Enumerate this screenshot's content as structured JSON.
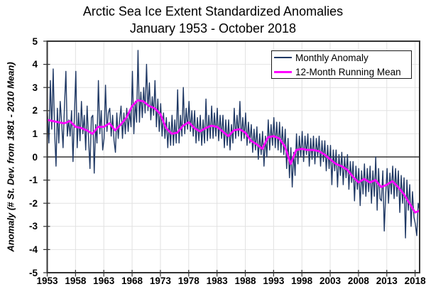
{
  "chart_data": {
    "type": "line",
    "title": "Arctic Sea Ice Extent Standardized Anomalies",
    "subtitle": "January 1953 - October 2018",
    "xlabel": "",
    "ylabel": "Anomaly (# St. Dev. from 1981 - 2010 Mean)",
    "xlim": [
      1953,
      2018.8
    ],
    "ylim": [
      -5,
      5
    ],
    "x_ticks": [
      1953,
      1958,
      1963,
      1968,
      1973,
      1978,
      1983,
      1988,
      1993,
      1998,
      2003,
      2008,
      2013,
      2018
    ],
    "y_ticks": [
      -5,
      -4,
      -3,
      -2,
      -1,
      0,
      1,
      2,
      3,
      4,
      5
    ],
    "grid": true,
    "zero_line": true,
    "legend_position": "top-right",
    "colors": {
      "gridline": "#E2E2E2",
      "axis": "#333333",
      "text": "#000000",
      "background": "#FFFFFF"
    },
    "series": [
      {
        "id": "monthly-anomaly",
        "name": "Monthly Anomaly",
        "color": "#1F3864",
        "stroke_width": 1.4,
        "x_start": 1953.05,
        "x_step": 0.25,
        "values": [
          1.9,
          0.6,
          3.3,
          1.2,
          3.8,
          1.1,
          -0.4,
          2.1,
          0.6,
          2.4,
          1.5,
          0.4,
          2.2,
          3.7,
          0.9,
          1.6,
          0.9,
          2.0,
          -0.2,
          1.8,
          3.7,
          0.4,
          1.9,
          0.7,
          2.4,
          1.0,
          1.8,
          0.3,
          2.2,
          0.8,
          -0.5,
          1.7,
          1.8,
          -0.7,
          1.4,
          0.6,
          3.3,
          1.0,
          2.0,
          0.3,
          0.8,
          3.1,
          1.1,
          1.9,
          2.1,
          0.9,
          1.8,
          0.7,
          0.2,
          1.9,
          0.8,
          1.6,
          2.2,
          0.8,
          1.9,
          1.0,
          2.1,
          1.1,
          2.0,
          1.3,
          3.7,
          1.0,
          2.4,
          1.5,
          4.6,
          1.5,
          2.8,
          1.7,
          3.0,
          1.9,
          4.0,
          2.0,
          3.2,
          1.6,
          2.6,
          1.8,
          3.3,
          1.3,
          2.5,
          1.1,
          2.3,
          0.9,
          1.9,
          0.8,
          1.7,
          0.4,
          1.5,
          0.5,
          1.8,
          0.5,
          1.6,
          0.6,
          2.9,
          0.6,
          1.8,
          0.9,
          3.0,
          1.0,
          2.1,
          1.2,
          2.4,
          1.1,
          2.0,
          0.9,
          2.0,
          0.6,
          1.7,
          0.7,
          1.8,
          0.5,
          1.6,
          0.6,
          2.5,
          0.7,
          1.8,
          0.8,
          2.2,
          0.8,
          1.9,
          0.9,
          2.1,
          0.7,
          1.8,
          0.8,
          1.8,
          0.4,
          1.6,
          0.5,
          1.6,
          0.3,
          1.4,
          0.6,
          2.1,
          0.8,
          1.8,
          0.9,
          2.4,
          0.7,
          1.7,
          0.8,
          1.9,
          0.5,
          1.5,
          0.6,
          1.4,
          0.2,
          1.2,
          0.3,
          1.3,
          -0.1,
          1.0,
          0.1,
          1.1,
          -0.4,
          0.9,
          0.0,
          1.6,
          0.3,
          1.4,
          0.5,
          1.7,
          0.4,
          1.5,
          0.3,
          1.5,
          0.2,
          1.3,
          0.1,
          1.2,
          -0.5,
          0.8,
          -0.9,
          0.4,
          -1.3,
          0.2,
          -0.8,
          1.0,
          -0.3,
          0.9,
          0.0,
          1.1,
          -0.2,
          0.9,
          0.1,
          1.0,
          -0.4,
          0.8,
          -0.1,
          0.9,
          -0.3,
          0.8,
          0.0,
          0.9,
          -0.4,
          0.7,
          -0.2,
          0.7,
          -0.6,
          0.5,
          -0.5,
          0.5,
          -1.2,
          0.3,
          -0.6,
          0.3,
          -1.3,
          0.1,
          -0.8,
          0.2,
          -1.2,
          0.0,
          -0.9,
          0.1,
          -1.4,
          -0.2,
          -1.1,
          -0.2,
          -1.9,
          -0.4,
          -1.4,
          -0.5,
          -2.1,
          -0.6,
          -1.6,
          -0.3,
          -1.7,
          -0.5,
          -1.5,
          -0.4,
          -2.0,
          -0.6,
          -1.7,
          0.0,
          -2.3,
          -0.5,
          -1.8,
          -1.9,
          -0.6,
          -3.2,
          -1.6,
          -0.5,
          -2.0,
          -0.7,
          -1.6,
          -0.4,
          -1.8,
          -0.5,
          -1.7,
          -0.6,
          -2.4,
          -0.8,
          -2.0,
          -0.9,
          -3.5,
          -1.0,
          -2.3,
          -1.2,
          -3.0,
          -1.5,
          -2.6,
          -2.9,
          -3.4,
          -2.0,
          -2.3
        ]
      },
      {
        "id": "running-mean",
        "name": "12-Month Running Mean",
        "color": "#FF00FF",
        "stroke_width": 2.8,
        "x_start": 1953,
        "x_step": 1,
        "values": [
          1.6,
          1.55,
          1.5,
          1.45,
          1.55,
          1.3,
          1.25,
          1.15,
          1.0,
          1.3,
          1.3,
          1.45,
          1.15,
          1.4,
          1.7,
          2.2,
          2.45,
          2.4,
          2.2,
          2.1,
          1.85,
          1.25,
          1.0,
          1.05,
          1.35,
          1.5,
          1.25,
          1.1,
          1.25,
          1.35,
          1.3,
          1.1,
          0.9,
          1.15,
          1.2,
          1.05,
          0.7,
          0.55,
          0.35,
          0.85,
          0.9,
          0.8,
          0.45,
          -0.3,
          0.3,
          0.35,
          0.3,
          0.3,
          0.25,
          0.1,
          -0.1,
          -0.3,
          -0.4,
          -0.55,
          -0.85,
          -1.1,
          -0.95,
          -1.1,
          -1.0,
          -1.3,
          -1.2,
          -1.05,
          -1.3,
          -1.6,
          -2.0,
          -2.4,
          -2.3
        ]
      }
    ]
  }
}
